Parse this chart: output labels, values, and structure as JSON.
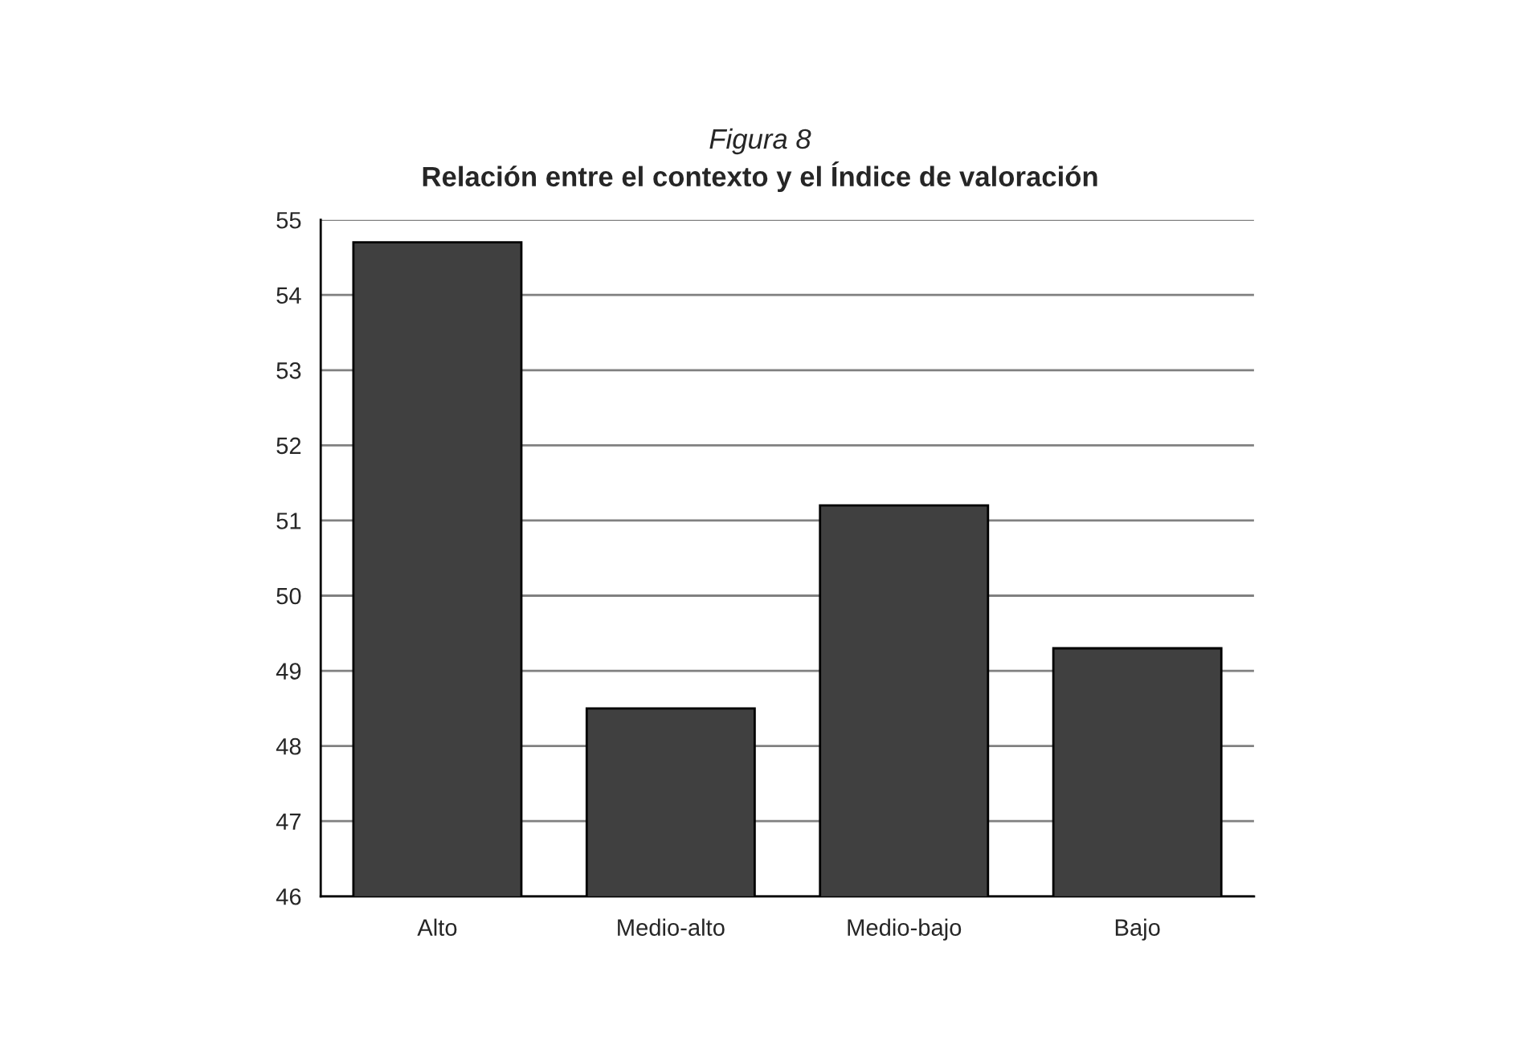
{
  "chart_data": {
    "type": "bar",
    "title": "Figura 8",
    "subtitle": "Relación entre el contexto y el Índice de valoración",
    "categories": [
      "Alto",
      "Medio-alto",
      "Medio-bajo",
      "Bajo"
    ],
    "values": [
      54.7,
      48.5,
      51.2,
      49.3
    ],
    "color": "#404040",
    "ylim": [
      46,
      55
    ],
    "yticks": [
      46,
      47,
      48,
      49,
      50,
      51,
      52,
      53,
      54,
      55
    ],
    "grid": "y",
    "legend": false
  }
}
